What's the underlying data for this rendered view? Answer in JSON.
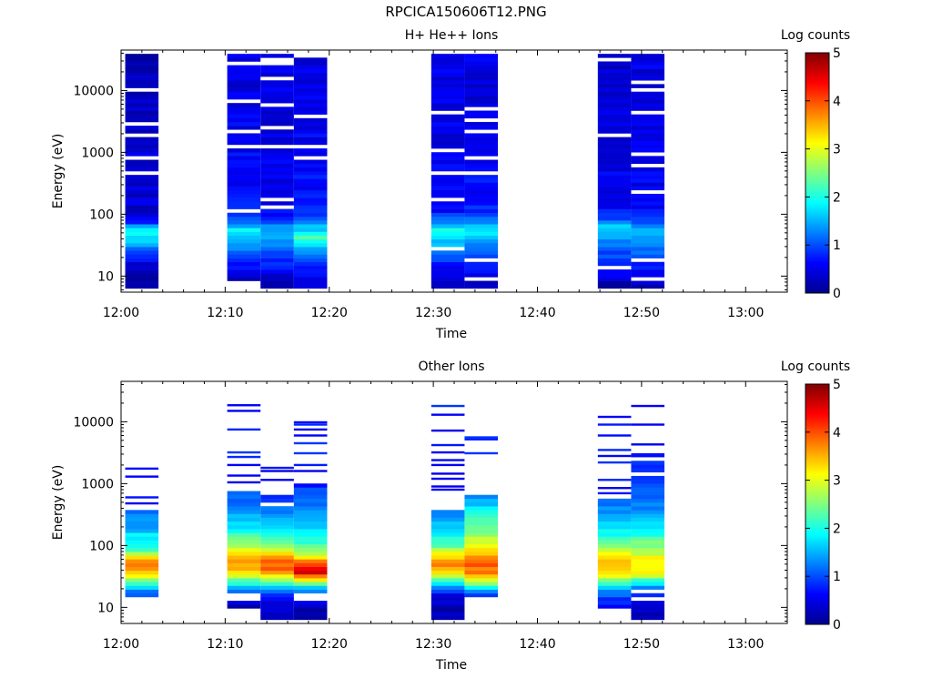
{
  "figure_title": "RPCICA150606T12.PNG",
  "chart_data": [
    {
      "type": "heatmap",
      "title": "H+ He++ Ions",
      "xlabel": "Time",
      "ylabel": "Energy (eV)",
      "colorbar_label": "Log counts",
      "colorbar_ticks": [
        "0",
        "1",
        "2",
        "3",
        "4",
        "5"
      ],
      "xticks": [
        "12:00",
        "12:10",
        "12:20",
        "12:30",
        "12:40",
        "12:50",
        "13:00"
      ],
      "yticks": [
        "10",
        "100",
        "1000",
        "10000"
      ],
      "y_scale": "log",
      "xlim_minutes": [
        0,
        64
      ],
      "ylim": [
        5.5,
        45000
      ],
      "clim": [
        0,
        5
      ],
      "colormap": "jet",
      "columns": [
        {
          "t0": 0.4,
          "t1": 3.6,
          "emin": 6,
          "emax": 40000,
          "profile": [
            [
              6,
              0.2
            ],
            [
              12,
              0.3
            ],
            [
              18,
              0.6
            ],
            [
              25,
              1.0
            ],
            [
              32,
              1.4
            ],
            [
              40,
              1.8
            ],
            [
              55,
              2.0
            ],
            [
              75,
              0.8
            ],
            [
              100,
              0.4
            ],
            [
              1000,
              0.4
            ],
            [
              10000,
              0.3
            ],
            [
              40000,
              0.3
            ]
          ],
          "gaps": [
            460,
            780,
            1900,
            3100,
            11000
          ]
        },
        {
          "t0": 10.2,
          "t1": 13.4,
          "emin": 9,
          "emax": 40000,
          "profile": [
            [
              9,
              0.3
            ],
            [
              14,
              0.6
            ],
            [
              22,
              1.0
            ],
            [
              30,
              1.3
            ],
            [
              40,
              1.6
            ],
            [
              55,
              1.9
            ],
            [
              75,
              1.2
            ],
            [
              100,
              0.7
            ],
            [
              1000,
              0.6
            ],
            [
              10000,
              0.5
            ],
            [
              40000,
              0.5
            ]
          ],
          "gaps": [
            115,
            1250,
            2200,
            6500,
            26000
          ]
        },
        {
          "t0": 13.4,
          "t1": 16.6,
          "emin": 6,
          "emax": 40000,
          "profile": [
            [
              6,
              0.3
            ],
            [
              10,
              0.5
            ],
            [
              20,
              0.9
            ],
            [
              30,
              1.3
            ],
            [
              45,
              1.6
            ],
            [
              60,
              1.4
            ],
            [
              90,
              0.8
            ],
            [
              150,
              0.6
            ],
            [
              1000,
              0.5
            ],
            [
              10000,
              0.5
            ],
            [
              40000,
              0.5
            ]
          ],
          "gaps": [
            140,
            175,
            1250,
            2400,
            6000,
            15000,
            28000,
            33000
          ]
        },
        {
          "t0": 16.6,
          "t1": 19.8,
          "emin": 6,
          "emax": 40000,
          "profile": [
            [
              6,
              0.3
            ],
            [
              12,
              0.6
            ],
            [
              22,
              1.1
            ],
            [
              32,
              1.6
            ],
            [
              42,
              2.2
            ],
            [
              60,
              1.6
            ],
            [
              90,
              0.9
            ],
            [
              150,
              0.7
            ],
            [
              1000,
              0.6
            ],
            [
              10000,
              0.5
            ],
            [
              40000,
              0.5
            ]
          ],
          "gaps": [
            800,
            1300,
            4000,
            38000
          ]
        },
        {
          "t0": 29.8,
          "t1": 33.0,
          "emin": 6,
          "emax": 40000,
          "profile": [
            [
              6,
              0.3
            ],
            [
              12,
              0.6
            ],
            [
              20,
              1.0
            ],
            [
              30,
              1.4
            ],
            [
              42,
              1.8
            ],
            [
              55,
              2.1
            ],
            [
              80,
              1.2
            ],
            [
              110,
              0.7
            ],
            [
              1000,
              0.5
            ],
            [
              10000,
              0.5
            ],
            [
              40000,
              0.5
            ]
          ],
          "gaps": [
            28,
            180,
            460,
            1150,
            4200
          ]
        },
        {
          "t0": 33.0,
          "t1": 36.2,
          "emin": 6,
          "emax": 40000,
          "profile": [
            [
              6,
              0.3
            ],
            [
              10,
              0.5
            ],
            [
              20,
              0.9
            ],
            [
              30,
              1.3
            ],
            [
              45,
              1.7
            ],
            [
              60,
              1.6
            ],
            [
              90,
              1.0
            ],
            [
              150,
              0.7
            ],
            [
              1000,
              0.6
            ],
            [
              10000,
              0.5
            ],
            [
              40000,
              0.5
            ]
          ],
          "gaps": [
            9,
            18,
            480,
            820,
            2200,
            3500,
            5000
          ]
        },
        {
          "t0": 45.8,
          "t1": 49.0,
          "emin": 6,
          "emax": 40000,
          "profile": [
            [
              6,
              0.2
            ],
            [
              12,
              0.5
            ],
            [
              20,
              0.9
            ],
            [
              30,
              1.2
            ],
            [
              45,
              1.5
            ],
            [
              60,
              1.7
            ],
            [
              90,
              0.9
            ],
            [
              150,
              0.6
            ],
            [
              1000,
              0.5
            ],
            [
              10000,
              0.4
            ],
            [
              40000,
              0.4
            ]
          ],
          "gaps": [
            13,
            1900,
            33000
          ]
        },
        {
          "t0": 49.0,
          "t1": 52.2,
          "emin": 6,
          "emax": 40000,
          "profile": [
            [
              6,
              0.2
            ],
            [
              10,
              0.5
            ],
            [
              20,
              1.0
            ],
            [
              30,
              1.3
            ],
            [
              45,
              1.6
            ],
            [
              60,
              1.4
            ],
            [
              90,
              0.9
            ],
            [
              150,
              0.6
            ],
            [
              1000,
              0.5
            ],
            [
              10000,
              0.5
            ],
            [
              40000,
              0.5
            ]
          ],
          "gaps": [
            9,
            17,
            240,
            600,
            960,
            4500,
            10500,
            14000
          ]
        }
      ]
    },
    {
      "type": "heatmap",
      "title": "Other Ions",
      "xlabel": "Time",
      "ylabel": "Energy (eV)",
      "colorbar_label": "Log counts",
      "colorbar_ticks": [
        "0",
        "1",
        "2",
        "3",
        "4",
        "5"
      ],
      "xticks": [
        "12:00",
        "12:10",
        "12:20",
        "12:30",
        "12:40",
        "12:50",
        "13:00"
      ],
      "yticks": [
        "10",
        "100",
        "1000",
        "10000"
      ],
      "y_scale": "log",
      "xlim_minutes": [
        0,
        64
      ],
      "ylim": [
        5.5,
        45000
      ],
      "clim": [
        0,
        5
      ],
      "colormap": "jet",
      "columns": [
        {
          "t0": 0.4,
          "t1": 3.6,
          "emin": 15,
          "emax": 400,
          "profile": [
            [
              15,
              0.8
            ],
            [
              20,
              1.5
            ],
            [
              25,
              2.2
            ],
            [
              30,
              2.8
            ],
            [
              38,
              3.6
            ],
            [
              48,
              4.0
            ],
            [
              60,
              3.4
            ],
            [
              80,
              2.4
            ],
            [
              120,
              1.9
            ],
            [
              200,
              1.5
            ],
            [
              400,
              1.2
            ]
          ],
          "gaps": [],
          "bands": [
            1300,
            1750,
            480,
            600
          ]
        },
        {
          "t0": 10.2,
          "t1": 13.4,
          "emin": 10,
          "emax": 800,
          "profile": [
            [
              10,
              0.3
            ],
            [
              15,
              0.7
            ],
            [
              20,
              1.3
            ],
            [
              25,
              2.0
            ],
            [
              30,
              2.6
            ],
            [
              40,
              3.4
            ],
            [
              55,
              3.8
            ],
            [
              70,
              3.4
            ],
            [
              100,
              2.6
            ],
            [
              200,
              1.8
            ],
            [
              400,
              1.3
            ],
            [
              800,
              0.9
            ]
          ],
          "gaps": [
            13,
            16,
            900
          ],
          "bands": [
            1050,
            1350,
            2000,
            2700,
            3200,
            7500,
            15000,
            18500
          ]
        },
        {
          "t0": 13.4,
          "t1": 16.6,
          "emin": 6,
          "emax": 800,
          "profile": [
            [
              6,
              0.2
            ],
            [
              10,
              0.4
            ],
            [
              15,
              0.6
            ],
            [
              20,
              1.3
            ],
            [
              25,
              2.2
            ],
            [
              32,
              3.2
            ],
            [
              42,
              3.8
            ],
            [
              55,
              4.0
            ],
            [
              70,
              3.5
            ],
            [
              100,
              2.6
            ],
            [
              200,
              1.8
            ],
            [
              400,
              1.2
            ],
            [
              800,
              0.8
            ]
          ],
          "gaps": [
            450,
            700
          ],
          "bands": [
            1150,
            1600,
            1800
          ]
        },
        {
          "t0": 16.6,
          "t1": 19.8,
          "emin": 6,
          "emax": 1000,
          "profile": [
            [
              6,
              0.2
            ],
            [
              10,
              0.3
            ],
            [
              15,
              0.6
            ],
            [
              20,
              1.4
            ],
            [
              25,
              2.6
            ],
            [
              30,
              3.6
            ],
            [
              38,
              4.6
            ],
            [
              48,
              4.2
            ],
            [
              60,
              3.6
            ],
            [
              80,
              2.6
            ],
            [
              150,
              1.8
            ],
            [
              400,
              1.2
            ],
            [
              1000,
              0.8
            ]
          ],
          "gaps": [
            13,
            15
          ],
          "bands": [
            1600,
            2000,
            3100,
            4500,
            6000,
            7500,
            9000,
            9800
          ]
        },
        {
          "t0": 29.8,
          "t1": 33.0,
          "emin": 6,
          "emax": 380,
          "profile": [
            [
              6,
              0.2
            ],
            [
              10,
              0.3
            ],
            [
              15,
              0.5
            ],
            [
              20,
              1.0
            ],
            [
              25,
              1.8
            ],
            [
              32,
              2.8
            ],
            [
              42,
              3.6
            ],
            [
              55,
              3.8
            ],
            [
              70,
              3.2
            ],
            [
              100,
              2.4
            ],
            [
              200,
              1.6
            ],
            [
              380,
              1.1
            ]
          ],
          "gaps": [],
          "bands": [
            800,
            900,
            1200,
            1450,
            2000,
            2400,
            3200,
            4200,
            7200,
            13000,
            18000
          ]
        },
        {
          "t0": 33.0,
          "t1": 36.2,
          "emin": 15,
          "emax": 700,
          "profile": [
            [
              15,
              0.8
            ],
            [
              20,
              1.6
            ],
            [
              25,
              2.6
            ],
            [
              30,
              3.4
            ],
            [
              40,
              3.8
            ],
            [
              55,
              4.0
            ],
            [
              70,
              3.6
            ],
            [
              100,
              3.0
            ],
            [
              200,
              2.4
            ],
            [
              400,
              1.8
            ],
            [
              700,
              1.2
            ]
          ],
          "gaps": [],
          "bands": [
            3100,
            5200,
            5600
          ]
        },
        {
          "t0": 45.8,
          "t1": 49.0,
          "emin": 10,
          "emax": 550,
          "profile": [
            [
              10,
              0.5
            ],
            [
              15,
              1.0
            ],
            [
              20,
              1.6
            ],
            [
              25,
              2.2
            ],
            [
              30,
              2.8
            ],
            [
              40,
              3.4
            ],
            [
              55,
              3.6
            ],
            [
              70,
              3.2
            ],
            [
              100,
              2.4
            ],
            [
              200,
              1.7
            ],
            [
              550,
              1.1
            ]
          ],
          "gaps": [],
          "bands": [
            700,
            850,
            1150,
            2200,
            2800,
            3500,
            6000,
            9000,
            12000
          ]
        },
        {
          "t0": 49.0,
          "t1": 52.2,
          "emin": 6,
          "emax": 3000,
          "profile": [
            [
              6,
              0.3
            ],
            [
              10,
              0.4
            ],
            [
              15,
              0.6
            ],
            [
              20,
              1.0
            ],
            [
              25,
              1.8
            ],
            [
              30,
              2.6
            ],
            [
              40,
              3.2
            ],
            [
              55,
              3.3
            ],
            [
              70,
              3.0
            ],
            [
              100,
              2.5
            ],
            [
              200,
              1.8
            ],
            [
              500,
              1.2
            ],
            [
              1000,
              1.0
            ],
            [
              3000,
              0.8
            ]
          ],
          "gaps": [
            13,
            18,
            1500,
            2500
          ],
          "bands": [
            4300,
            9000,
            18000
          ]
        }
      ]
    }
  ]
}
